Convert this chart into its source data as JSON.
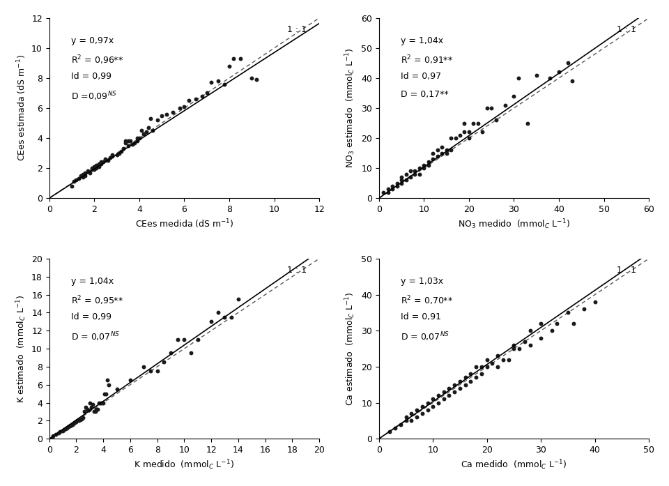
{
  "plots": [
    {
      "xlabel": "CEes medida (dS m$^{-1}$)",
      "ylabel": "CEes estimada (dS m$^{-1}$)",
      "xlim": [
        0,
        12
      ],
      "ylim": [
        0,
        12
      ],
      "xticks": [
        0,
        2,
        4,
        6,
        8,
        10,
        12
      ],
      "yticks": [
        0,
        2,
        4,
        6,
        8,
        10,
        12
      ],
      "slope": 0.97,
      "eq_text": "y = 0,97x",
      "r2_text": "R$^{2}$ = 0,96**",
      "id_text": "Id = 0,99",
      "d_text": "D =0,09$^{NS}$",
      "scatter_x": [
        1.0,
        1.1,
        1.2,
        1.3,
        1.4,
        1.5,
        1.5,
        1.6,
        1.6,
        1.7,
        1.8,
        1.9,
        1.9,
        2.0,
        2.0,
        2.1,
        2.1,
        2.2,
        2.2,
        2.3,
        2.3,
        2.4,
        2.5,
        2.5,
        2.6,
        2.7,
        2.8,
        2.8,
        3.0,
        3.1,
        3.2,
        3.3,
        3.4,
        3.4,
        3.5,
        3.5,
        3.6,
        3.7,
        3.8,
        3.9,
        3.9,
        4.0,
        4.1,
        4.2,
        4.3,
        4.4,
        4.5,
        4.6,
        4.8,
        5.0,
        5.2,
        5.5,
        5.8,
        6.0,
        6.2,
        6.5,
        6.8,
        7.0,
        7.2,
        7.5,
        7.8,
        8.0,
        8.2,
        8.5,
        9.0,
        9.2
      ],
      "scatter_y": [
        0.8,
        1.1,
        1.2,
        1.3,
        1.5,
        1.4,
        1.6,
        1.5,
        1.7,
        1.8,
        1.7,
        1.9,
        2.0,
        1.9,
        2.1,
        2.0,
        2.2,
        2.1,
        2.3,
        2.3,
        2.4,
        2.4,
        2.5,
        2.6,
        2.5,
        2.7,
        2.8,
        2.9,
        2.9,
        3.0,
        3.1,
        3.3,
        3.7,
        3.8,
        3.5,
        3.8,
        3.8,
        3.6,
        3.7,
        3.8,
        4.0,
        4.0,
        4.5,
        4.3,
        4.4,
        4.7,
        5.3,
        4.5,
        5.2,
        5.5,
        5.6,
        5.7,
        6.0,
        6.1,
        6.5,
        6.6,
        6.8,
        7.0,
        7.7,
        7.8,
        7.6,
        8.8,
        9.3,
        9.3,
        8.0,
        7.9
      ]
    },
    {
      "xlabel": "NO$_3$ medido  (mmol$_C$ L$^{-1}$)",
      "ylabel": "NO$_3$ estimado  (mmol$_C$ L$^{-1}$)",
      "xlim": [
        0,
        60
      ],
      "ylim": [
        0,
        60
      ],
      "xticks": [
        0,
        10,
        20,
        30,
        40,
        50,
        60
      ],
      "yticks": [
        0,
        10,
        20,
        30,
        40,
        50,
        60
      ],
      "slope": 1.04,
      "eq_text": "y = 1,04x",
      "r2_text": "R$^{2}$ = 0,91**",
      "id_text": "Id = 0,97",
      "d_text": "D = 0,17**",
      "scatter_x": [
        1,
        2,
        2,
        3,
        3,
        4,
        4,
        5,
        5,
        5,
        6,
        6,
        7,
        7,
        8,
        8,
        9,
        9,
        10,
        10,
        11,
        11,
        12,
        12,
        13,
        13,
        14,
        14,
        15,
        15,
        16,
        16,
        17,
        18,
        19,
        19,
        20,
        20,
        21,
        22,
        23,
        24,
        25,
        26,
        28,
        30,
        31,
        33,
        35,
        38,
        40,
        42,
        43
      ],
      "scatter_y": [
        2,
        2,
        3,
        3,
        4,
        4,
        5,
        5,
        6,
        7,
        6,
        8,
        7,
        9,
        8,
        9,
        8,
        10,
        10,
        11,
        11,
        12,
        13,
        15,
        14,
        16,
        15,
        17,
        15,
        16,
        16,
        20,
        20,
        21,
        22,
        25,
        20,
        22,
        25,
        25,
        22,
        30,
        30,
        26,
        31,
        34,
        40,
        25,
        41,
        40,
        42,
        45,
        39
      ]
    },
    {
      "xlabel": "K medido  (mmol$_C$ L$^{-1}$)",
      "ylabel": "K estimado  (mmol$_C$ L$^{-1}$)",
      "xlim": [
        0,
        20
      ],
      "ylim": [
        0,
        20
      ],
      "xticks": [
        0,
        2,
        4,
        6,
        8,
        10,
        12,
        14,
        16,
        18,
        20
      ],
      "yticks": [
        0,
        2,
        4,
        6,
        8,
        10,
        12,
        14,
        16,
        18,
        20
      ],
      "slope": 1.04,
      "eq_text": "y = 1,04x",
      "r2_text": "R$^{2}$ = 0,95**",
      "id_text": "Id = 0,99",
      "d_text": "D = 0,07$^{NS}$",
      "scatter_x": [
        0.2,
        0.3,
        0.5,
        0.7,
        0.8,
        1.0,
        1.1,
        1.2,
        1.3,
        1.4,
        1.5,
        1.6,
        1.7,
        1.8,
        1.9,
        2.0,
        2.1,
        2.2,
        2.3,
        2.4,
        2.5,
        2.6,
        2.7,
        2.8,
        2.9,
        3.0,
        3.1,
        3.2,
        3.3,
        3.4,
        3.5,
        3.6,
        3.7,
        3.8,
        3.9,
        4.0,
        4.1,
        4.2,
        4.3,
        4.4,
        5.0,
        6.0,
        7.0,
        7.5,
        8.0,
        8.5,
        9.0,
        9.5,
        10.0,
        10.5,
        11.0,
        12.0,
        12.5,
        13.0,
        13.5,
        14.0
      ],
      "scatter_y": [
        0.1,
        0.3,
        0.5,
        0.6,
        0.8,
        0.9,
        1.0,
        1.1,
        1.2,
        1.3,
        1.4,
        1.5,
        1.6,
        1.7,
        1.8,
        1.9,
        2.0,
        2.0,
        2.1,
        2.2,
        2.3,
        3.0,
        3.5,
        3.3,
        3.2,
        4.0,
        3.5,
        3.8,
        3.0,
        3.0,
        3.3,
        3.3,
        4.0,
        4.0,
        4.0,
        4.0,
        5.0,
        5.0,
        6.5,
        6.0,
        5.5,
        6.5,
        8.0,
        7.5,
        7.5,
        8.5,
        9.5,
        11.0,
        11.0,
        9.5,
        11.0,
        13.0,
        14.0,
        13.5,
        13.5,
        15.5
      ]
    },
    {
      "xlabel": "Ca medido  (mmol$_C$ L$^{-1}$)",
      "ylabel": "Ca estimado  (mmol$_C$ L$^{-1}$)",
      "xlim": [
        0,
        50
      ],
      "ylim": [
        0,
        50
      ],
      "xticks": [
        0,
        10,
        20,
        30,
        40,
        50
      ],
      "yticks": [
        0,
        10,
        20,
        30,
        40,
        50
      ],
      "slope": 1.03,
      "eq_text": "y = 1,03x",
      "r2_text": "R$^{2}$ = 0,70**",
      "id_text": "Id = 0,91",
      "d_text": "D = 0,07$^{NS}$",
      "scatter_x": [
        2,
        3,
        4,
        5,
        5,
        6,
        6,
        7,
        7,
        8,
        8,
        9,
        9,
        10,
        10,
        11,
        11,
        12,
        12,
        13,
        13,
        14,
        14,
        15,
        15,
        16,
        16,
        17,
        17,
        18,
        18,
        19,
        19,
        20,
        20,
        21,
        22,
        22,
        23,
        24,
        25,
        25,
        26,
        27,
        28,
        28,
        30,
        30,
        32,
        33,
        35,
        36,
        38,
        40
      ],
      "scatter_y": [
        2,
        3,
        4,
        5,
        6,
        5,
        7,
        6,
        8,
        7,
        9,
        8,
        10,
        9,
        11,
        10,
        12,
        11,
        13,
        12,
        14,
        13,
        15,
        14,
        16,
        15,
        17,
        16,
        18,
        17,
        20,
        18,
        20,
        20,
        22,
        21,
        20,
        23,
        22,
        22,
        25,
        26,
        25,
        27,
        26,
        30,
        28,
        32,
        30,
        32,
        35,
        32,
        36,
        38
      ]
    }
  ],
  "background_color": "#ffffff",
  "dot_color": "#1a1a1a",
  "dot_size": 18,
  "line_color": "#000000",
  "dashed_color": "#555555",
  "font_size": 9,
  "label_font_size": 9,
  "annotation_font_size": 9
}
